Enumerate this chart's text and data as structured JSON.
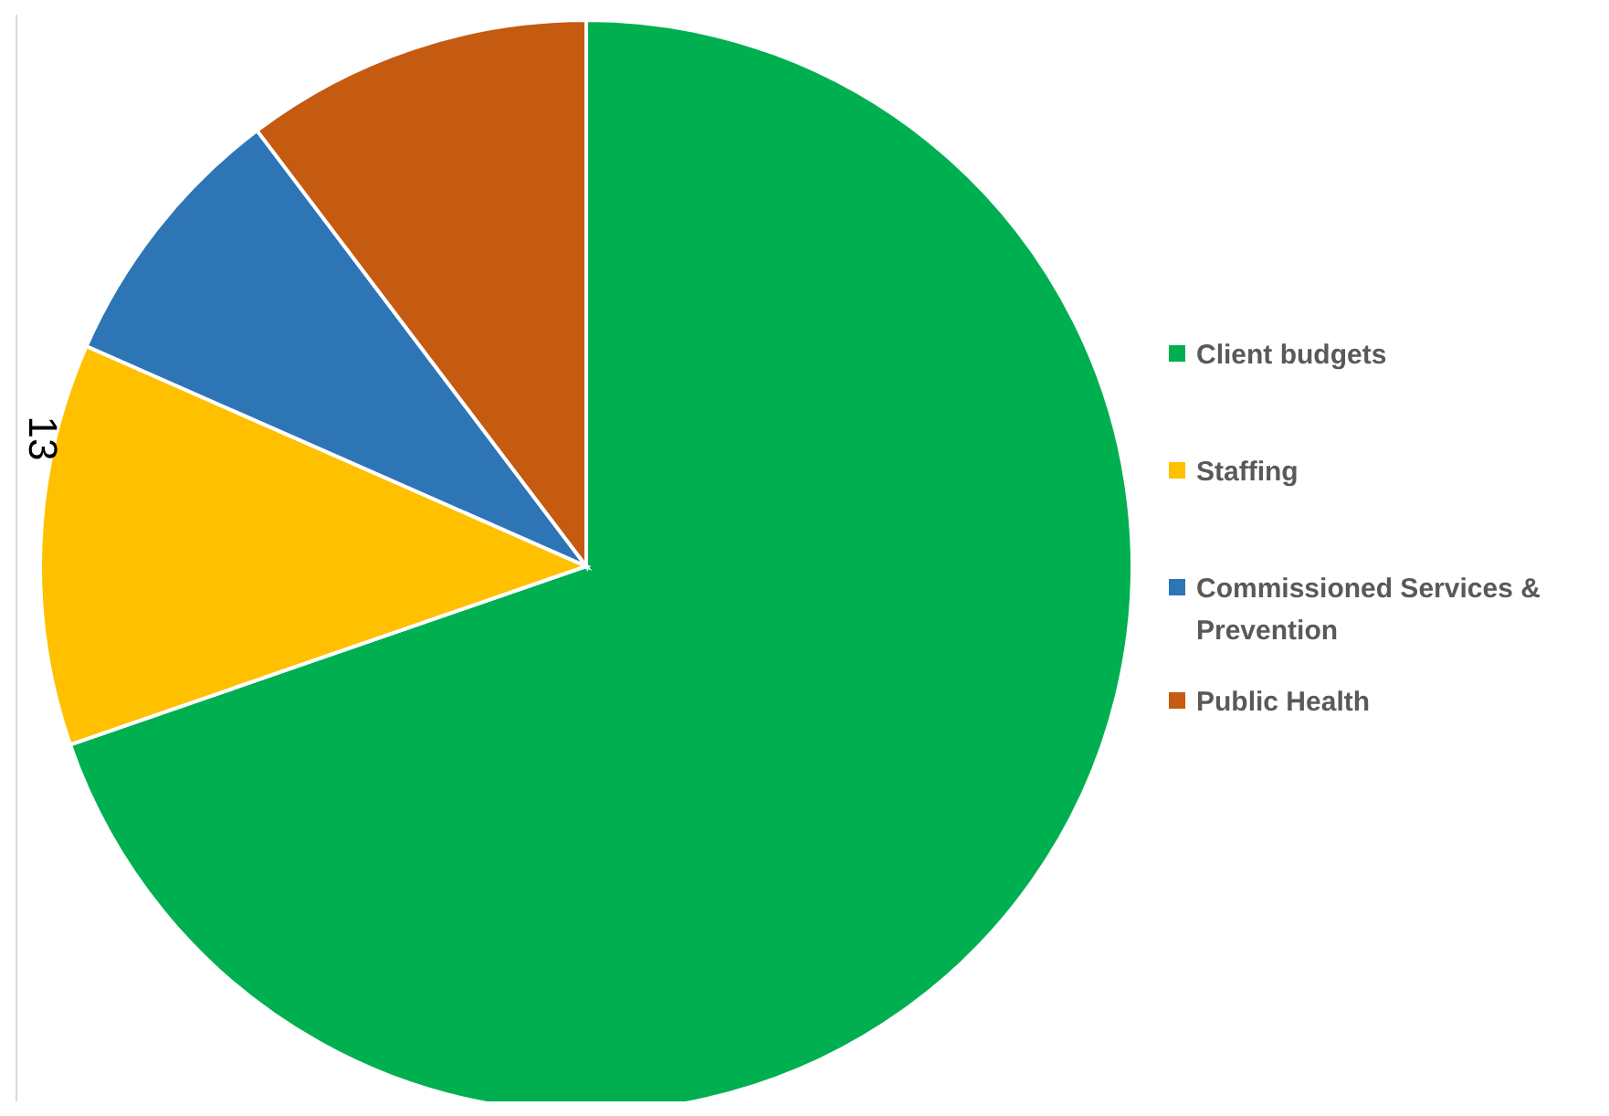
{
  "chart_data": {
    "type": "pie",
    "categories": [
      "Client budgets",
      "Staffing",
      "Commissioned Services & Prevention",
      "Public Health"
    ],
    "values": [
      69.7,
      11.9,
      8.1,
      10.3
    ],
    "colors": [
      "#00b050",
      "#ffc000",
      "#2e75b6",
      "#c55a11"
    ],
    "legend": "right",
    "annotations": [
      "13"
    ]
  }
}
